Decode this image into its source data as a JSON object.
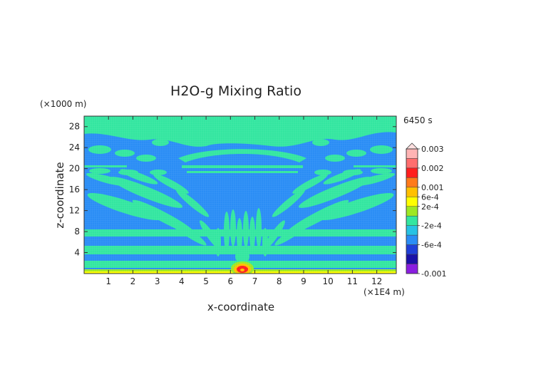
{
  "chart_data": {
    "type": "heatmap",
    "title": "H2O-g Mixing Ratio",
    "xlabel": "x-coordinate",
    "ylabel": "z-coordinate",
    "x_unit": "(×1E4 m)",
    "y_unit": "(×1000 m)",
    "time_label": "6450 s",
    "xlim": [
      0,
      12.8
    ],
    "ylim": [
      0,
      30
    ],
    "x_ticks": [
      "1",
      "2",
      "3",
      "4",
      "5",
      "6",
      "7",
      "8",
      "9",
      "10",
      "11",
      "12"
    ],
    "x_tick_values": [
      1,
      2,
      3,
      4,
      5,
      6,
      7,
      8,
      9,
      10,
      11,
      12
    ],
    "y_ticks": [
      "4",
      "8",
      "12",
      "16",
      "20",
      "24",
      "28"
    ],
    "y_tick_values": [
      4,
      8,
      12,
      16,
      20,
      24,
      28
    ],
    "background_level": "-2e-4 to 2e-4",
    "features": [
      {
        "name": "moist plume core",
        "x": 6.4,
        "z": 0.8,
        "level": "0.002"
      },
      {
        "name": "surface moist layer",
        "x_range": [
          0,
          12.8
        ],
        "z": 0.2,
        "level": "6e-4"
      }
    ],
    "colorbar": {
      "labels": [
        "0.003",
        "0.002",
        "0.001",
        "6e-4",
        "2e-4",
        "-2e-4",
        "-6e-4",
        "-0.001"
      ],
      "label_values": [
        0.003,
        0.002,
        0.001,
        0.0006,
        0.0002,
        -0.0002,
        -0.0006,
        -0.001
      ],
      "bands": [
        {
          "from": 0.0025,
          "to": 0.003,
          "color": "#ffb4b4"
        },
        {
          "from": 0.002,
          "to": 0.0025,
          "color": "#ff6e6e"
        },
        {
          "from": 0.0015,
          "to": 0.002,
          "color": "#ff1e1e"
        },
        {
          "from": 0.001,
          "to": 0.0015,
          "color": "#ff7a1a"
        },
        {
          "from": 0.0006,
          "to": 0.001,
          "color": "#ffc000"
        },
        {
          "from": 0.0004,
          "to": 0.0006,
          "color": "#ffff00"
        },
        {
          "from": 0.0002,
          "to": 0.0004,
          "color": "#9ee824"
        },
        {
          "from": 0.0,
          "to": 0.0002,
          "color": "#33e6a0"
        },
        {
          "from": -0.0002,
          "to": 0.0,
          "color": "#27c2e4"
        },
        {
          "from": -0.0004,
          "to": -0.0002,
          "color": "#2a8df5"
        },
        {
          "from": -0.0006,
          "to": -0.0004,
          "color": "#1f3fd8"
        },
        {
          "from": -0.0008,
          "to": -0.0006,
          "color": "#1a10a8"
        },
        {
          "from": -0.001,
          "to": -0.0008,
          "color": "#8a1ee0"
        }
      ]
    }
  }
}
